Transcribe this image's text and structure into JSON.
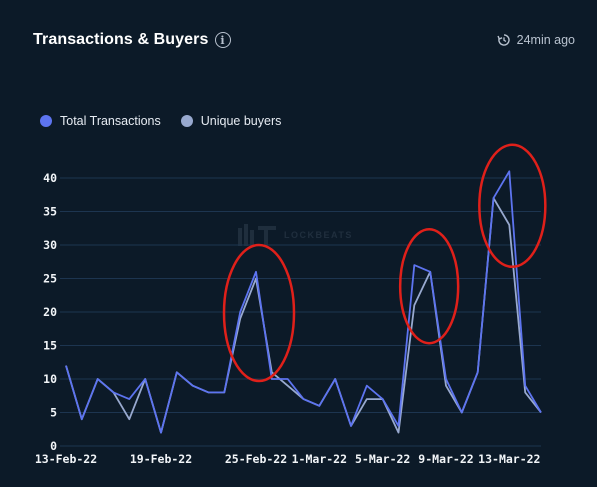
{
  "header": {
    "title": "Transactions & Buyers",
    "info_icon": "info-icon",
    "updated_icon": "clock-refresh-icon",
    "updated": "24min ago"
  },
  "watermark": {
    "text": "LOCKBEATS"
  },
  "colors": {
    "background": "#0c1a28",
    "total": "#5d74f0",
    "unique": "#98a9cf",
    "highlight": "#e0201a",
    "grid": "#1d3550"
  },
  "chart_data": {
    "type": "line",
    "title": "Transactions & Buyers",
    "xlabel": "",
    "ylabel": "",
    "ylim": [
      0,
      40
    ],
    "yticks": [
      0,
      5,
      10,
      15,
      20,
      25,
      30,
      35,
      40
    ],
    "grid": true,
    "legend_position": "top-left",
    "x_tick_labels": [
      "13-Feb-22",
      "19-Feb-22",
      "25-Feb-22",
      "1-Mar-22",
      "5-Mar-22",
      "9-Mar-22",
      "13-Mar-22"
    ],
    "x_tick_indices": [
      0,
      6,
      12,
      16,
      20,
      24,
      28
    ],
    "series": [
      {
        "name": "Total Transactions",
        "color": "#5d74f0",
        "values": [
          12,
          4,
          10,
          8,
          7,
          10,
          2,
          11,
          9,
          8,
          8,
          20,
          26,
          10,
          10,
          7,
          6,
          10,
          3,
          9,
          7,
          3,
          27,
          26,
          10,
          5,
          11,
          37,
          41,
          9,
          5
        ]
      },
      {
        "name": "Unique buyers",
        "color": "#98a9cf",
        "values": [
          12,
          4,
          10,
          8,
          4,
          10,
          2,
          11,
          9,
          8,
          8,
          19,
          25,
          11,
          9,
          7,
          6,
          10,
          3,
          7,
          7,
          2,
          21,
          26,
          9,
          5,
          11,
          37,
          33,
          8,
          5
        ]
      }
    ],
    "annotations": [
      {
        "shape": "ellipse",
        "center_index": 12,
        "center_value": 20
      },
      {
        "shape": "ellipse",
        "center_index": 23,
        "center_value": 24
      },
      {
        "shape": "ellipse",
        "center_index": 28,
        "center_value": 36
      }
    ]
  }
}
